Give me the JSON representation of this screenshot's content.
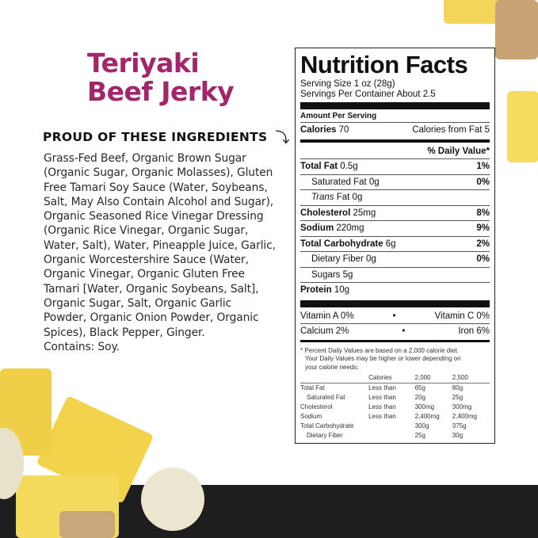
{
  "product": {
    "title_lines": [
      "Teriyaki",
      "Beef Jerky"
    ],
    "title_color": "#a3266b"
  },
  "ingredients": {
    "heading": "PROUD OF THESE INGREDIENTS",
    "arrow_icon": "curved-arrow-down-icon",
    "lines": [
      "Grass-Fed Beef, Organic Brown Sugar",
      "(Organic Sugar, Organic Molasses), Gluten",
      "Free Tamari Soy Sauce (Water, Soybeans,",
      "Salt, May Also Contain Alcohol and Sugar),",
      "Organic Seasoned Rice Vinegar Dressing",
      "(Organic Rice Vinegar, Organic Sugar,",
      "Water, Salt), Water, Pineapple Juice, Garlic,",
      "Organic Worcestershire Sauce (Water,",
      "Organic Vinegar, Organic Gluten Free",
      "Tamari [Water, Organic Soybeans, Salt],",
      "Organic Sugar, Salt, Organic Garlic",
      "Powder, Organic Onion Powder, Organic",
      "Spices), Black Pepper, Ginger.",
      "Contains: Soy."
    ]
  },
  "nutrition": {
    "title": "Nutrition Facts",
    "serving_size": "Serving Size 1 oz (28g)",
    "servings": "Servings Per Container About 2.5",
    "amount_per_serving": "Amount Per Serving",
    "calories_label": "Calories",
    "calories": "70",
    "calories_fat": "Calories from Fat 5",
    "dv_header": "% Daily Value*",
    "rows": [
      {
        "label": "Total Fat",
        "amount": "0.5g",
        "dv": "1%",
        "bold": true
      },
      {
        "label": "Saturated Fat",
        "amount": "0g",
        "dv": "0%",
        "indent": true
      },
      {
        "label": "Trans",
        "suffix": "Fat 0g",
        "dv": "",
        "indent": true
      },
      {
        "label": "Cholesterol",
        "amount": "25mg",
        "dv": "8%",
        "bold": true
      },
      {
        "label": "Sodium",
        "amount": "220mg",
        "dv": "9%",
        "bold": true
      },
      {
        "label": "Total Carbohydrate",
        "amount": "6g",
        "dv": "2%",
        "bold": true
      },
      {
        "label": "Dietary Fiber",
        "amount": "0g",
        "dv": "0%",
        "indent": true
      },
      {
        "label": "Sugars",
        "amount": "5g",
        "dv": "",
        "indent": true
      },
      {
        "label": "Protein",
        "amount": "10g",
        "dv": "",
        "bold": true
      }
    ],
    "vitamins": [
      [
        "Vitamin A 0%",
        "•",
        "Vitamin C 0%"
      ],
      [
        "Calcium 2%",
        "•",
        "Iron 6%"
      ]
    ],
    "footnote": [
      "* Percent Daily Values are based on a 2,000 calorie diet.",
      "Your Daily Values may be higher or lower depending on",
      "your calorie needs:"
    ],
    "table_header": [
      "",
      "Calories",
      "2,000",
      "2,500"
    ],
    "table": [
      [
        "Total Fat",
        "Less than",
        "65g",
        "80g"
      ],
      [
        "Saturated Fat",
        "Less than",
        "20g",
        "25g"
      ],
      [
        "Cholesterol",
        "Less than",
        "300mg",
        "300mg"
      ],
      [
        "Sodium",
        "Less than",
        "2,400mg",
        "2,400mg"
      ],
      [
        "Total Carbohydrate",
        "",
        "300g",
        "375g"
      ],
      [
        "Dietary Fiber",
        "",
        "25g",
        "30g"
      ]
    ]
  }
}
